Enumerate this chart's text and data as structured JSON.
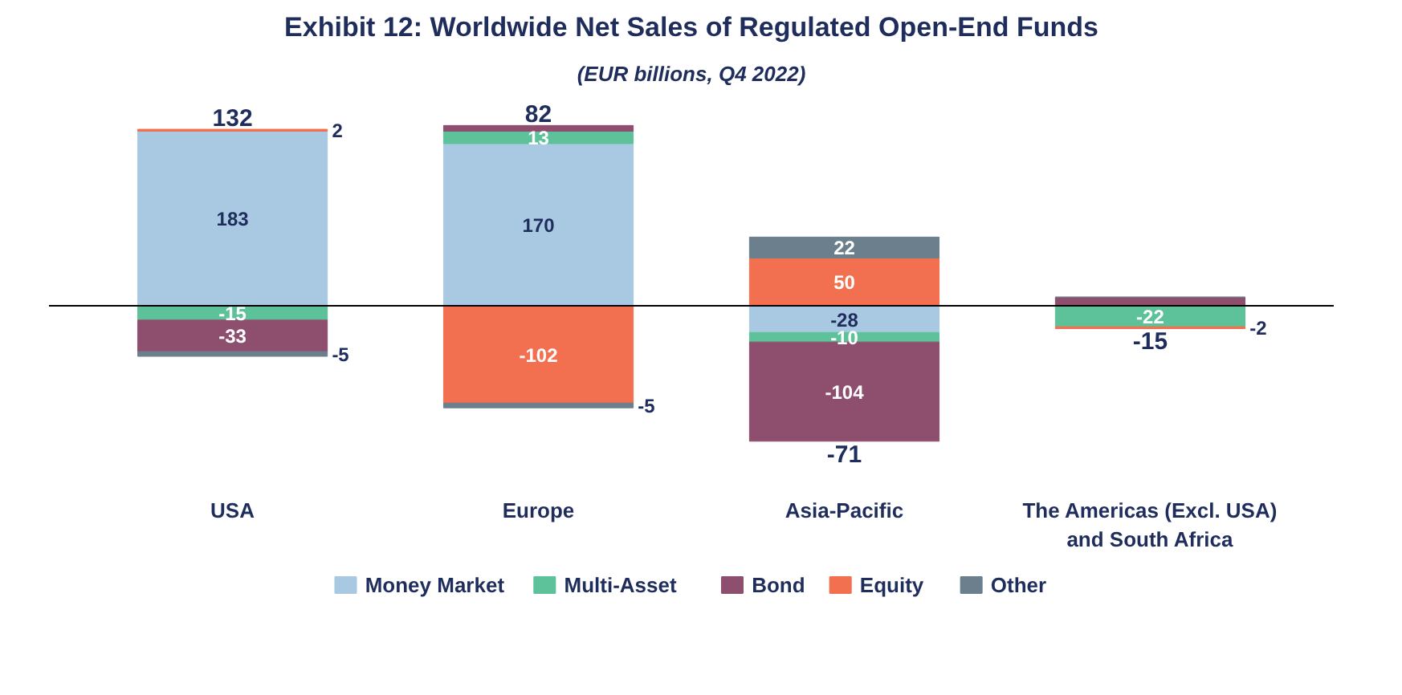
{
  "chart_data": {
    "type": "bar",
    "stacked": true,
    "title": "Exhibit 12: Worldwide Net Sales of Regulated Open-End Funds",
    "subtitle": "(EUR billions, Q4 2022)",
    "categories": [
      "USA",
      "Europe",
      "Asia-Pacific",
      "The Americas (Excl. USA) and South Africa"
    ],
    "series": [
      {
        "name": "Money Market",
        "color": "#a9c9e2",
        "values": [
          183,
          170,
          -28,
          0
        ],
        "value_labels": [
          "183",
          "170",
          "-28",
          null
        ]
      },
      {
        "name": "Multi-Asset",
        "color": "#5dc199",
        "values": [
          -15,
          13,
          -10,
          -22
        ],
        "value_labels": [
          "-15",
          "13",
          "-10",
          "-22"
        ]
      },
      {
        "name": "Bond",
        "color": "#8e4f6f",
        "values": [
          -33,
          6,
          -104,
          9
        ],
        "value_labels": [
          "-33",
          null,
          "-104",
          null
        ]
      },
      {
        "name": "Equity",
        "color": "#f2704f",
        "values": [
          2,
          -102,
          50,
          -2
        ],
        "value_labels": [
          "2",
          "-102",
          "50",
          "-2"
        ]
      },
      {
        "name": "Other",
        "color": "#6b7f8c",
        "values": [
          -5,
          -5,
          22,
          0
        ],
        "value_labels": [
          "-5",
          "-5",
          "22",
          null
        ]
      }
    ],
    "totals": [
      "132",
      "82",
      "-71",
      "-15"
    ],
    "legend": "bottom",
    "tick_labels": "x"
  }
}
